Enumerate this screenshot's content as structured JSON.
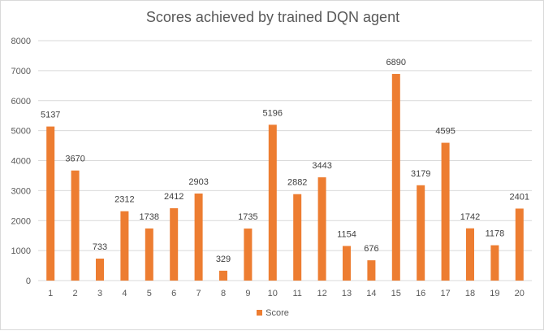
{
  "chart_data": {
    "type": "bar",
    "title": "Scores achieved by trained DQN agent",
    "xlabel": "",
    "ylabel": "",
    "categories": [
      "1",
      "2",
      "3",
      "4",
      "5",
      "6",
      "7",
      "8",
      "9",
      "10",
      "11",
      "12",
      "13",
      "14",
      "15",
      "16",
      "17",
      "18",
      "19",
      "20"
    ],
    "series": [
      {
        "name": "Score",
        "color": "#ed7d31",
        "values": [
          5137,
          3670,
          733,
          2312,
          1738,
          2412,
          2903,
          329,
          1735,
          5196,
          2882,
          3443,
          1154,
          676,
          6890,
          3179,
          4595,
          1742,
          1178,
          2401
        ]
      }
    ],
    "ylim": [
      0,
      8000
    ],
    "yticks": [
      0,
      1000,
      2000,
      3000,
      4000,
      5000,
      6000,
      7000,
      8000
    ],
    "grid": true,
    "legend_position": "bottom",
    "data_labels": true
  }
}
